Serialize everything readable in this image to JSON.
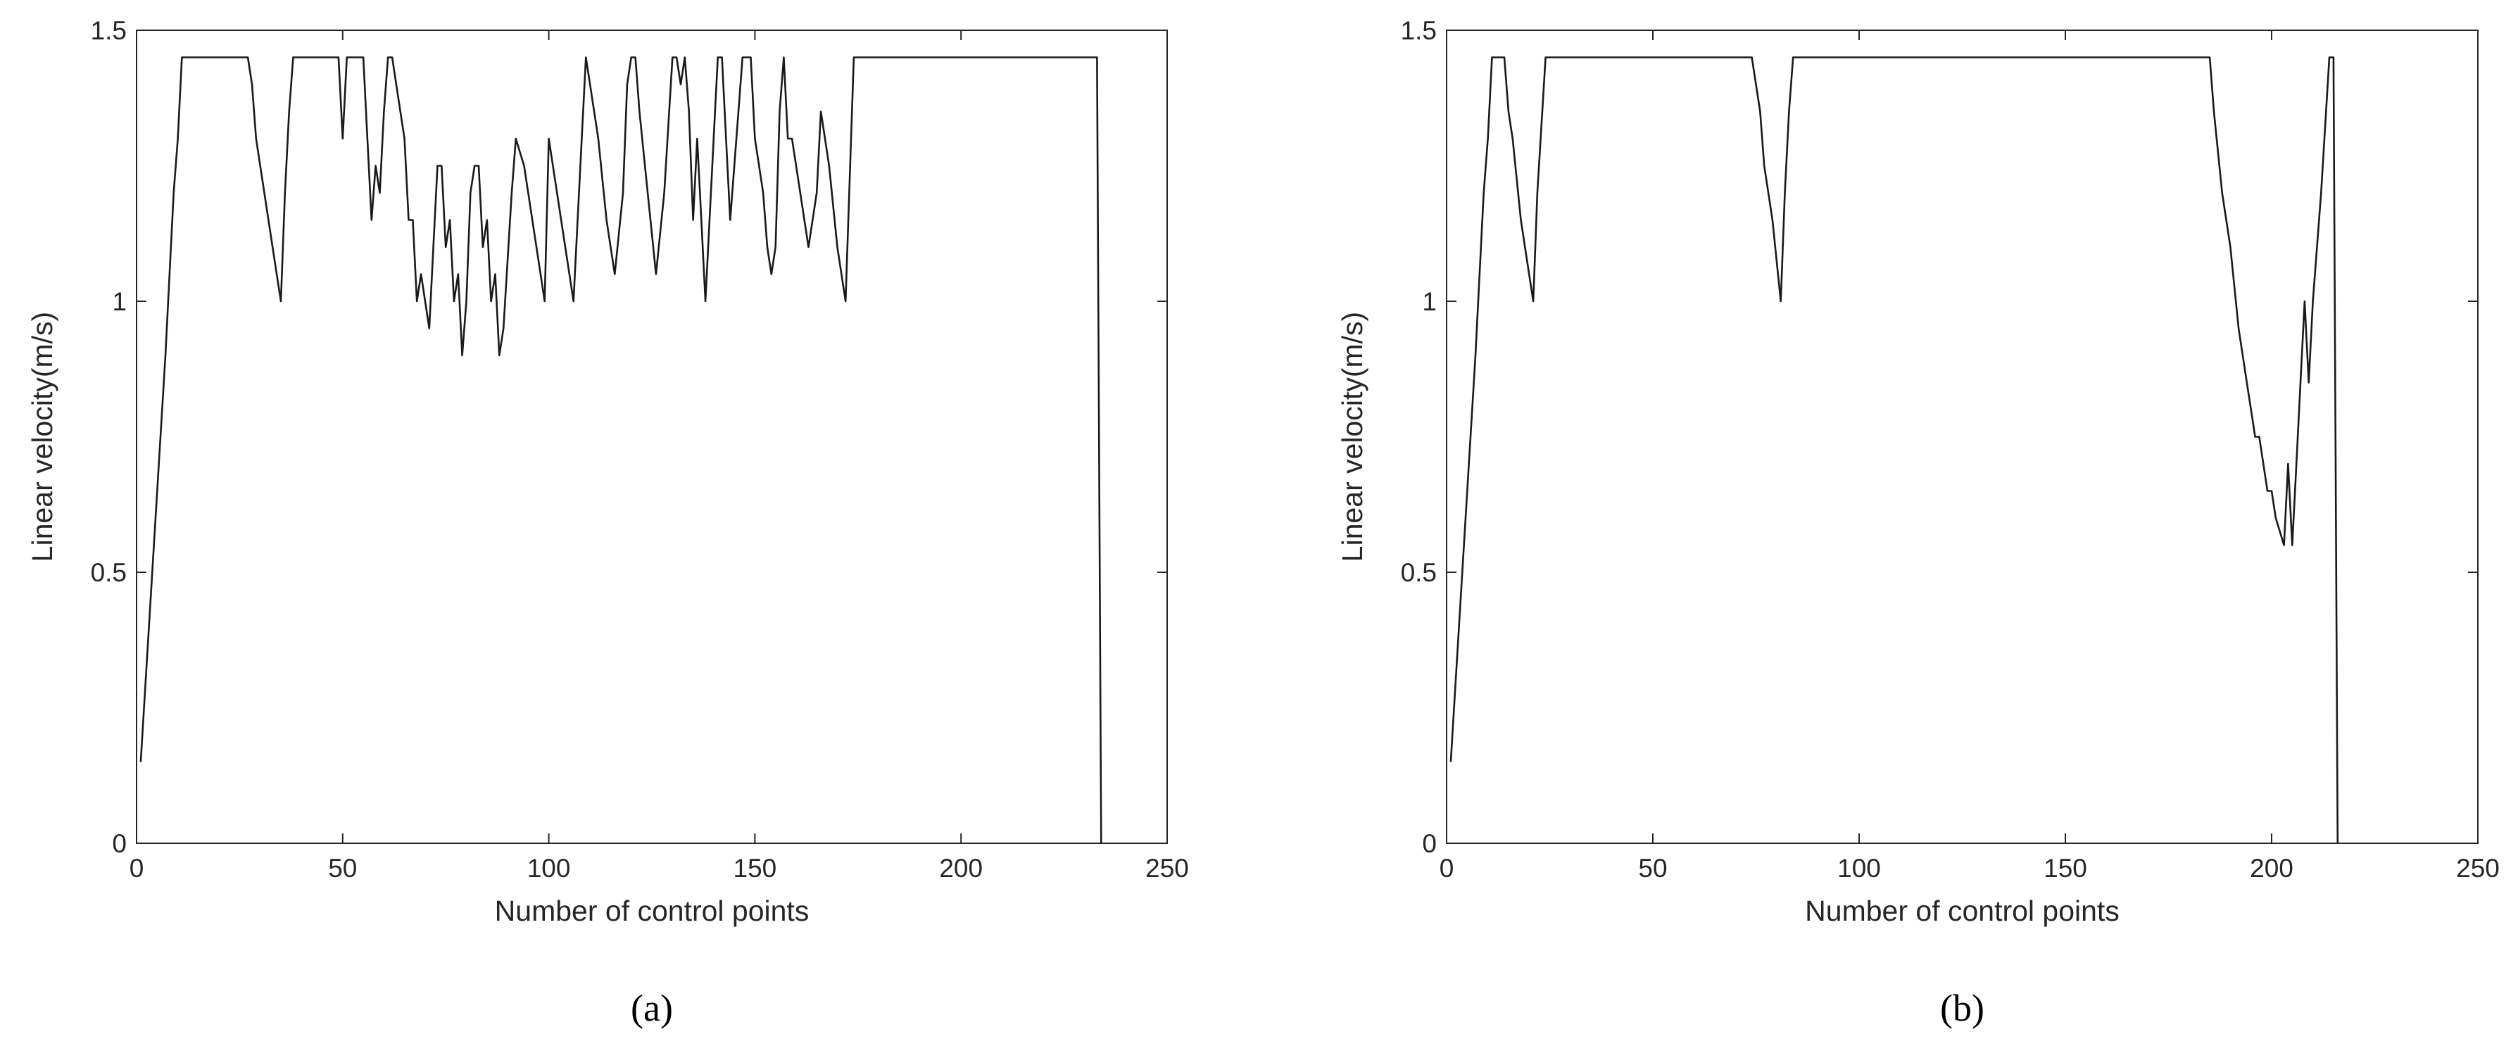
{
  "chart_data": [
    {
      "type": "line",
      "caption": "(a)",
      "xlabel": "Number of control points",
      "ylabel": "Linear velocity(m/s)",
      "color": "#1a1a1a",
      "xlim": [
        0,
        250
      ],
      "xticks": [
        0,
        50,
        100,
        150,
        200,
        250
      ],
      "ylim": [
        0,
        1.5
      ],
      "yticks": [
        0,
        0.5,
        1,
        1.5
      ],
      "x": [
        1,
        3,
        5,
        7,
        9,
        10,
        11,
        27,
        28,
        29,
        31,
        33,
        35,
        36,
        37,
        38,
        49,
        50,
        51,
        55,
        56,
        57,
        58,
        59,
        60,
        61,
        62,
        63,
        65,
        66,
        67,
        68,
        69,
        71,
        72,
        73,
        74,
        75,
        76,
        77,
        78,
        79,
        80,
        81,
        82,
        83,
        84,
        85,
        86,
        87,
        88,
        89,
        91,
        92,
        94,
        96,
        98,
        99,
        100,
        102,
        104,
        106,
        108,
        109,
        110,
        112,
        114,
        116,
        118,
        119,
        120,
        121,
        122,
        124,
        126,
        128,
        130,
        131,
        132,
        133,
        134,
        135,
        136,
        137,
        138,
        140,
        141,
        142,
        143,
        144,
        146,
        147,
        149,
        150,
        151,
        152,
        153,
        154,
        155,
        156,
        157,
        158,
        159,
        161,
        163,
        165,
        166,
        167,
        168,
        170,
        172,
        174,
        233,
        234
      ],
      "values": [
        0.15,
        0.4,
        0.65,
        0.9,
        1.2,
        1.3,
        1.45,
        1.45,
        1.4,
        1.3,
        1.2,
        1.1,
        1.0,
        1.2,
        1.35,
        1.45,
        1.45,
        1.3,
        1.45,
        1.45,
        1.3,
        1.15,
        1.25,
        1.2,
        1.35,
        1.45,
        1.45,
        1.4,
        1.3,
        1.15,
        1.15,
        1.0,
        1.05,
        0.95,
        1.1,
        1.25,
        1.25,
        1.1,
        1.15,
        1.0,
        1.05,
        0.9,
        1.0,
        1.2,
        1.25,
        1.25,
        1.1,
        1.15,
        1.0,
        1.05,
        0.9,
        0.95,
        1.2,
        1.3,
        1.25,
        1.15,
        1.05,
        1.0,
        1.3,
        1.2,
        1.1,
        1.0,
        1.3,
        1.45,
        1.4,
        1.3,
        1.15,
        1.05,
        1.2,
        1.4,
        1.45,
        1.45,
        1.35,
        1.2,
        1.05,
        1.2,
        1.45,
        1.45,
        1.4,
        1.45,
        1.35,
        1.15,
        1.3,
        1.15,
        1.0,
        1.3,
        1.45,
        1.45,
        1.3,
        1.15,
        1.35,
        1.45,
        1.45,
        1.3,
        1.25,
        1.2,
        1.1,
        1.05,
        1.1,
        1.35,
        1.45,
        1.3,
        1.3,
        1.2,
        1.1,
        1.2,
        1.35,
        1.3,
        1.25,
        1.1,
        1.0,
        1.45,
        1.45,
        0
      ]
    },
    {
      "type": "line",
      "caption": "(b)",
      "xlabel": "Number of control points",
      "ylabel": "Linear velocity(m/s)",
      "color": "#1a1a1a",
      "xlim": [
        0,
        250
      ],
      "xticks": [
        0,
        50,
        100,
        150,
        200,
        250
      ],
      "ylim": [
        0,
        1.5
      ],
      "yticks": [
        0,
        0.5,
        1,
        1.5
      ],
      "x": [
        1,
        3,
        5,
        7,
        9,
        10,
        11,
        14,
        15,
        16,
        18,
        20,
        21,
        22,
        24,
        74,
        76,
        77,
        79,
        81,
        82,
        83,
        84,
        185,
        186,
        188,
        190,
        192,
        194,
        196,
        197,
        199,
        200,
        201,
        203,
        204,
        205,
        206,
        207,
        208,
        209,
        210,
        212,
        214,
        215,
        216
      ],
      "values": [
        0.15,
        0.4,
        0.65,
        0.9,
        1.2,
        1.3,
        1.45,
        1.45,
        1.35,
        1.3,
        1.15,
        1.05,
        1.0,
        1.2,
        1.45,
        1.45,
        1.35,
        1.25,
        1.15,
        1.0,
        1.2,
        1.35,
        1.45,
        1.45,
        1.35,
        1.2,
        1.1,
        0.95,
        0.85,
        0.75,
        0.75,
        0.65,
        0.65,
        0.6,
        0.55,
        0.7,
        0.55,
        0.7,
        0.85,
        1.0,
        0.85,
        1.0,
        1.2,
        1.45,
        1.45,
        0
      ]
    }
  ]
}
